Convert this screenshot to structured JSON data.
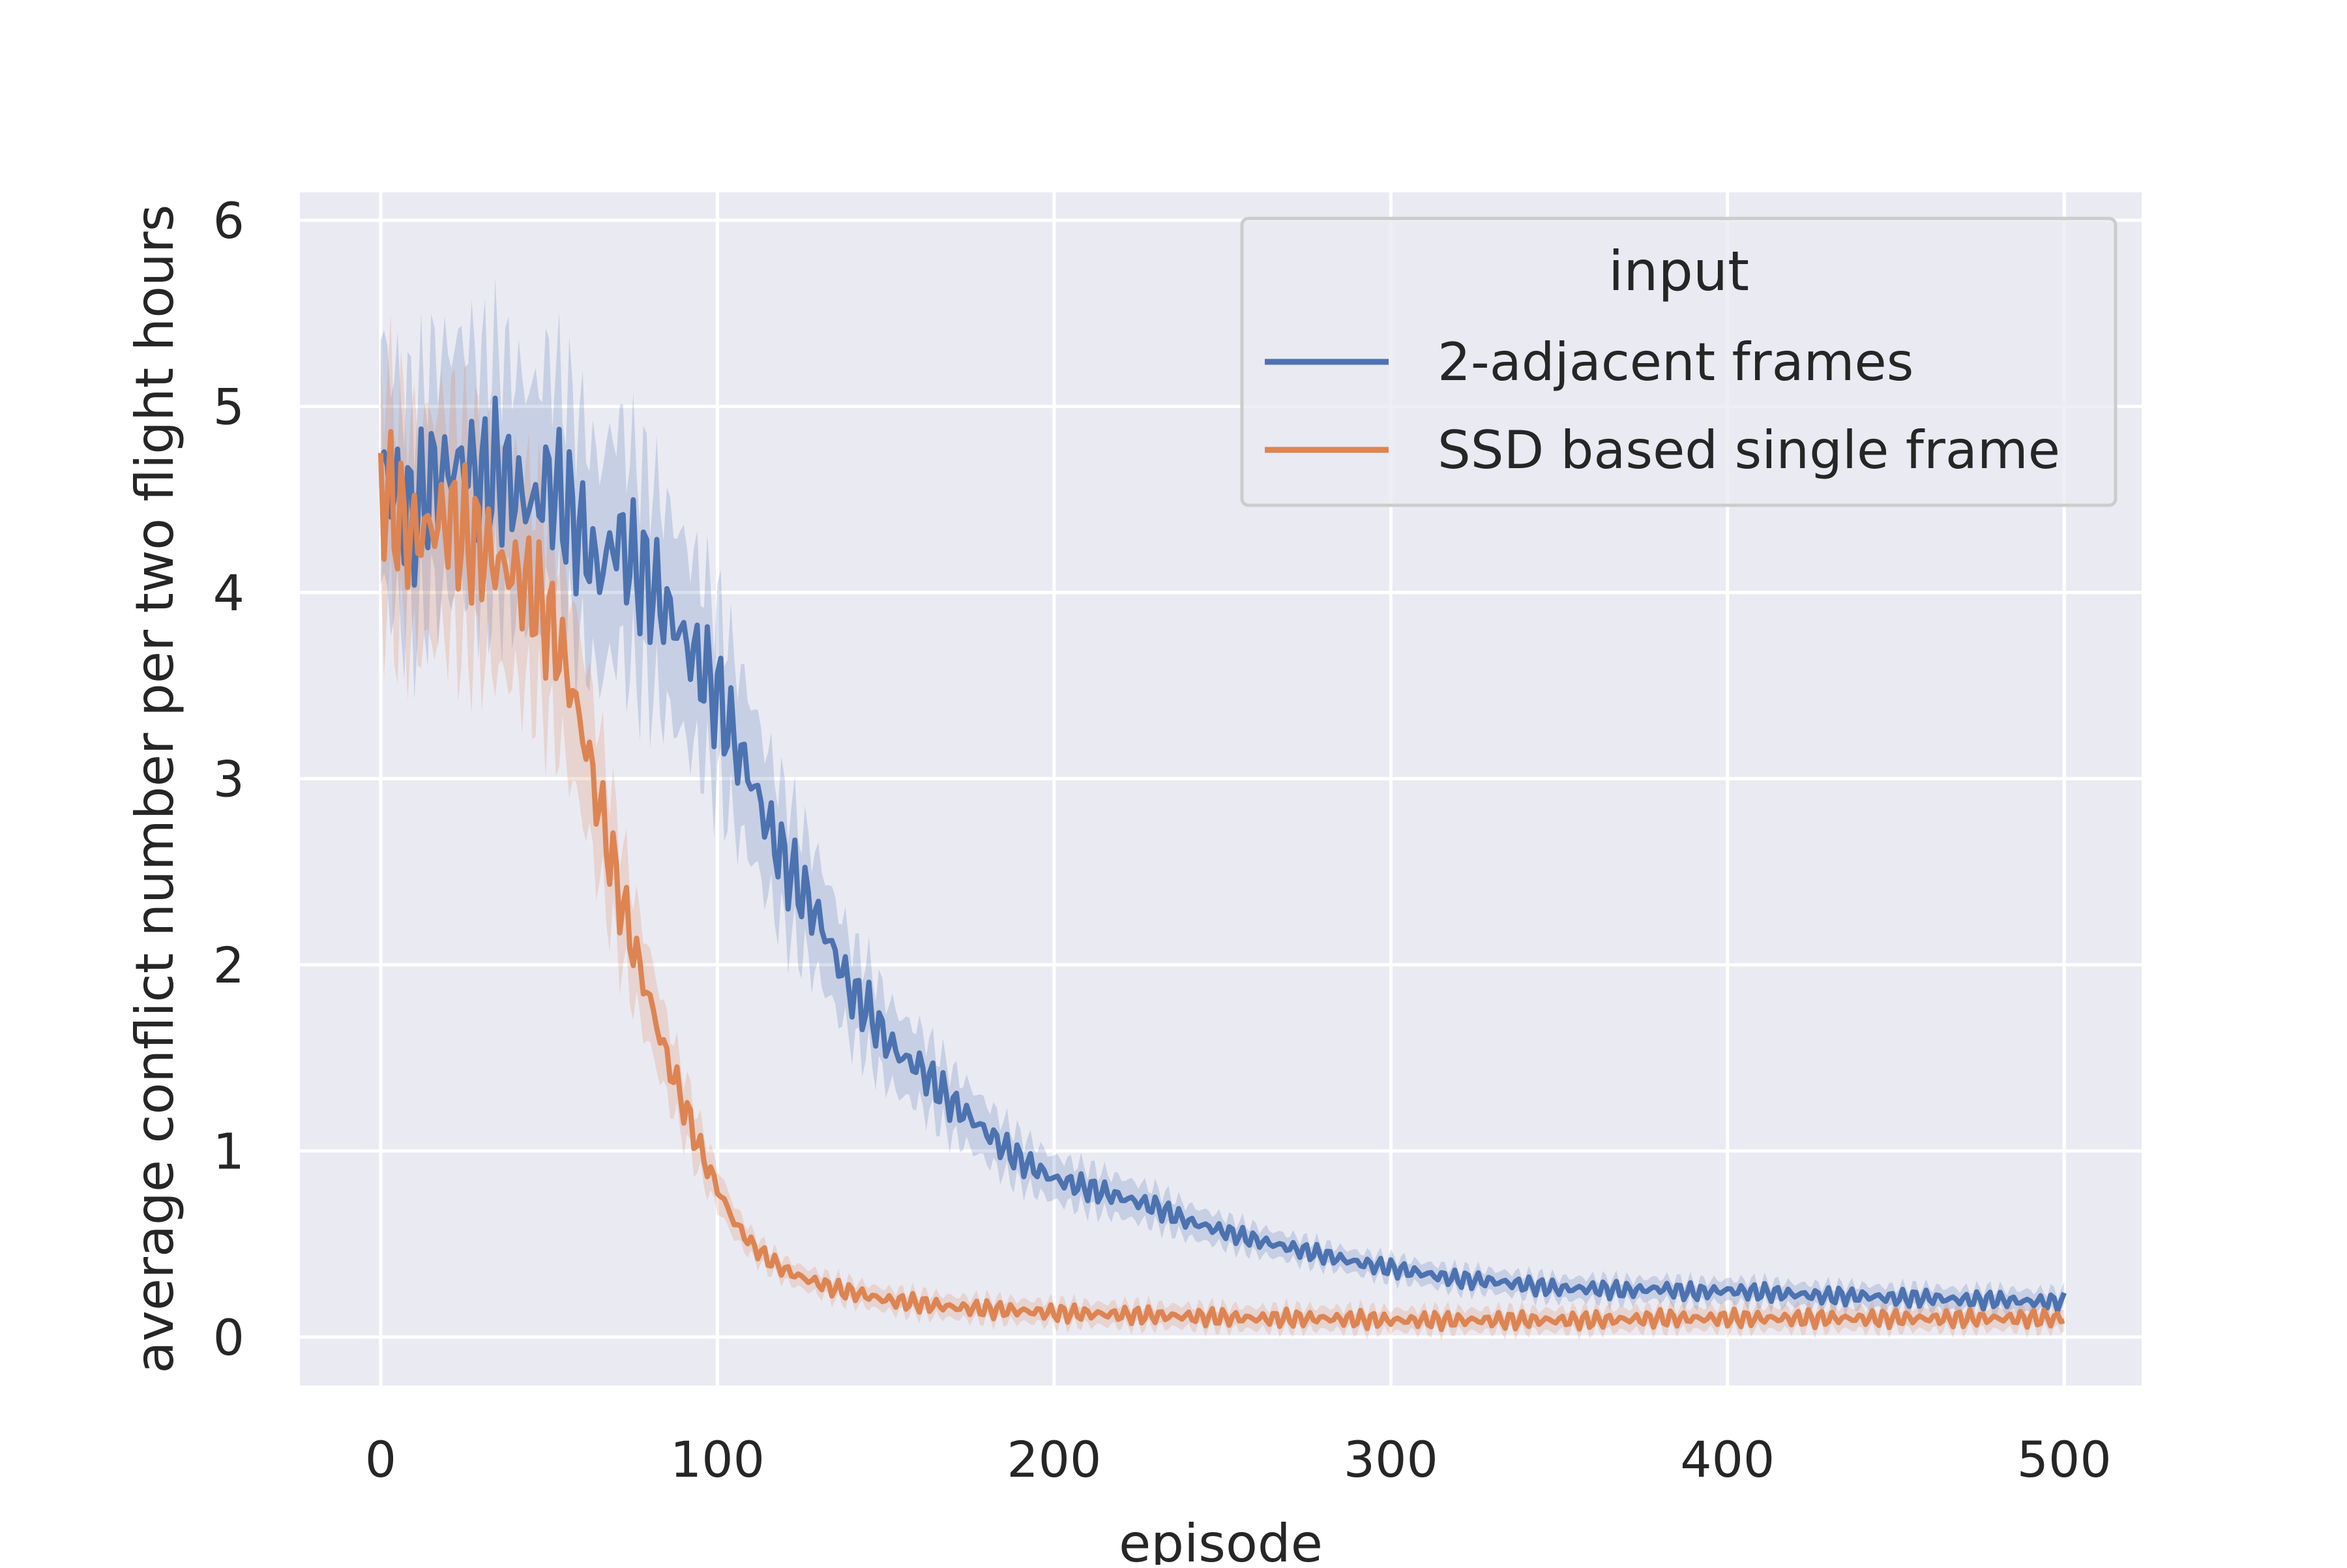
{
  "chart_data": {
    "type": "line",
    "xlabel": "episode",
    "ylabel": "average conflict number per two flight hours",
    "xlim": [
      -24,
      523
    ],
    "ylim": [
      -0.26,
      6.15
    ],
    "xticks": [
      0,
      100,
      200,
      300,
      400,
      500
    ],
    "yticks": [
      0,
      1,
      2,
      3,
      4,
      5,
      6
    ],
    "grid": true,
    "legend": {
      "title": "input",
      "placement": "top-right"
    },
    "colors": {
      "background": "#eaeaf2",
      "grid": "#ffffff"
    },
    "series": [
      {
        "name": "2-adjacent frames",
        "color": "#4c72b0",
        "band": true,
        "x": [
          0,
          5,
          10,
          15,
          20,
          25,
          30,
          35,
          40,
          45,
          50,
          55,
          60,
          65,
          70,
          75,
          80,
          85,
          90,
          95,
          100,
          105,
          110,
          115,
          120,
          125,
          130,
          135,
          140,
          145,
          150,
          155,
          160,
          165,
          170,
          175,
          180,
          185,
          190,
          195,
          200,
          210,
          220,
          230,
          240,
          250,
          260,
          270,
          280,
          290,
          300,
          310,
          320,
          330,
          340,
          350,
          360,
          370,
          380,
          390,
          400,
          410,
          420,
          430,
          440,
          450,
          460,
          470,
          480,
          490,
          500
        ],
        "values": [
          4.7,
          4.5,
          4.4,
          4.6,
          4.65,
          4.7,
          4.6,
          4.65,
          4.55,
          4.45,
          4.6,
          4.45,
          4.3,
          4.1,
          4.3,
          4.15,
          4.05,
          3.9,
          3.75,
          3.6,
          3.45,
          3.2,
          3.0,
          2.75,
          2.55,
          2.4,
          2.25,
          2.05,
          1.85,
          1.75,
          1.6,
          1.5,
          1.45,
          1.35,
          1.25,
          1.18,
          1.1,
          1.02,
          0.95,
          0.9,
          0.85,
          0.8,
          0.75,
          0.7,
          0.62,
          0.57,
          0.52,
          0.48,
          0.44,
          0.4,
          0.37,
          0.34,
          0.31,
          0.3,
          0.28,
          0.26,
          0.26,
          0.25,
          0.26,
          0.24,
          0.25,
          0.24,
          0.23,
          0.22,
          0.22,
          0.21,
          0.21,
          0.2,
          0.2,
          0.19,
          0.19
        ]
      },
      {
        "name": "SSD based single frame",
        "color": "#dd8452",
        "band": true,
        "x": [
          0,
          5,
          10,
          15,
          20,
          25,
          30,
          35,
          40,
          45,
          50,
          55,
          60,
          65,
          70,
          75,
          80,
          85,
          90,
          95,
          100,
          105,
          110,
          115,
          120,
          125,
          130,
          135,
          140,
          145,
          150,
          160,
          170,
          180,
          190,
          200,
          220,
          240,
          260,
          280,
          300,
          320,
          340,
          360,
          380,
          400,
          420,
          440,
          460,
          480,
          500
        ],
        "values": [
          4.6,
          4.4,
          4.3,
          4.35,
          4.4,
          4.3,
          4.25,
          4.15,
          4.1,
          4.0,
          3.85,
          3.6,
          3.25,
          2.85,
          2.45,
          2.1,
          1.8,
          1.5,
          1.25,
          1.0,
          0.8,
          0.62,
          0.5,
          0.42,
          0.36,
          0.32,
          0.29,
          0.26,
          0.24,
          0.22,
          0.2,
          0.18,
          0.16,
          0.15,
          0.14,
          0.13,
          0.12,
          0.11,
          0.1,
          0.1,
          0.09,
          0.09,
          0.09,
          0.09,
          0.1,
          0.1,
          0.1,
          0.1,
          0.1,
          0.1,
          0.1
        ]
      }
    ]
  }
}
